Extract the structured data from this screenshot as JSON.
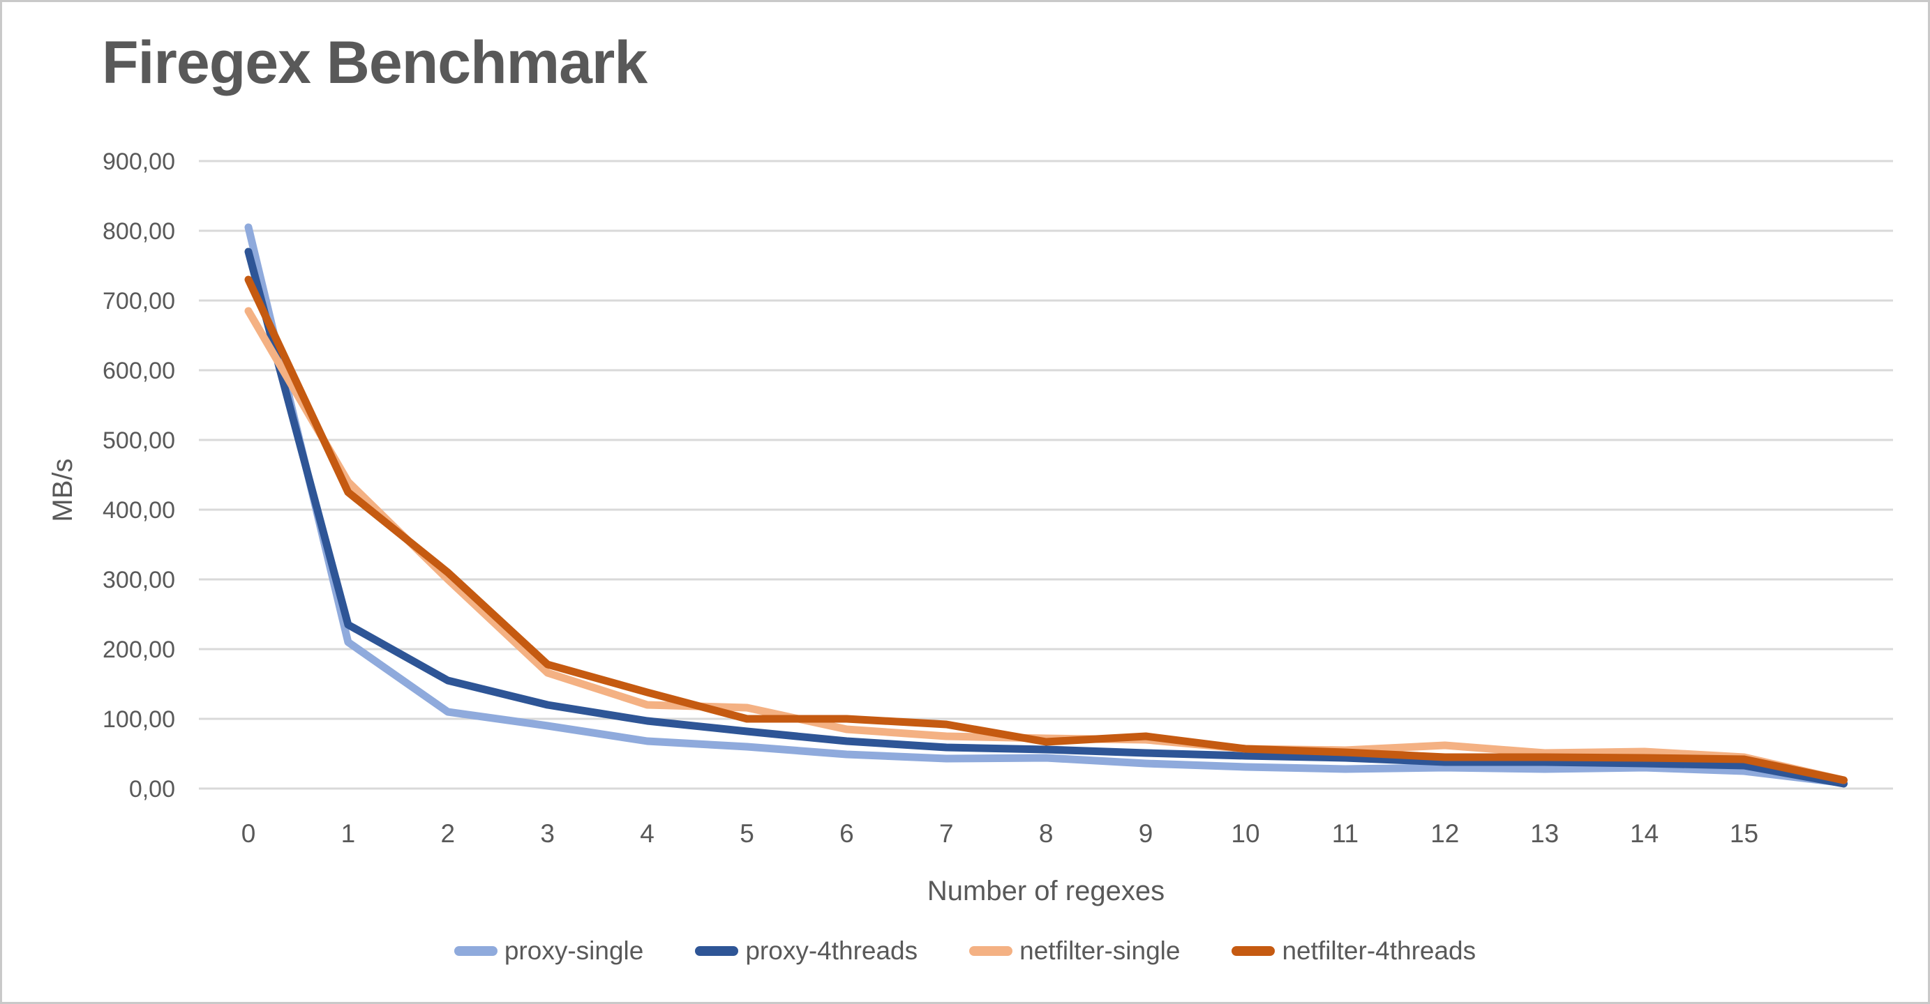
{
  "title": "Firegex Benchmark",
  "colors": {
    "title_text": "#595959",
    "axis_text": "#595959",
    "gridline": "#d9d9d9",
    "background": "#ffffff",
    "frame_border": "#c9c9c9"
  },
  "chart_data": {
    "type": "line",
    "title": "Firegex Benchmark",
    "xlabel": "Number of regexes",
    "ylabel": "MB/s",
    "grid": "horizontal",
    "legend_position": "bottom",
    "ylim": [
      0,
      900
    ],
    "y_ticks": [
      0,
      100,
      200,
      300,
      400,
      500,
      600,
      700,
      800,
      900
    ],
    "y_tick_labels": [
      "0,00",
      "100,00",
      "200,00",
      "300,00",
      "400,00",
      "500,00",
      "600,00",
      "700,00",
      "800,00",
      "900,00"
    ],
    "x": [
      0,
      1,
      2,
      3,
      4,
      5,
      6,
      7,
      8,
      9,
      10,
      11,
      12,
      13,
      14,
      15,
      16
    ],
    "x_tick_labels": [
      "0",
      "1",
      "2",
      "3",
      "4",
      "5",
      "6",
      "7",
      "8",
      "9",
      "10",
      "11",
      "12",
      "13",
      "14",
      "15",
      ""
    ],
    "series": [
      {
        "name": "proxy-single",
        "color": "#8FAADC",
        "values": [
          805,
          210,
          110,
          90,
          68,
          60,
          49,
          43,
          44,
          36,
          31,
          28,
          30,
          28,
          30,
          25,
          8
        ]
      },
      {
        "name": "proxy-4threads",
        "color": "#2E5596",
        "values": [
          770,
          235,
          155,
          120,
          97,
          82,
          68,
          59,
          56,
          51,
          47,
          44,
          38,
          38,
          36,
          33,
          7
        ]
      },
      {
        "name": "netfilter-single",
        "color": "#F4B183",
        "values": [
          685,
          440,
          300,
          166,
          120,
          116,
          85,
          75,
          72,
          70,
          57,
          55,
          62,
          51,
          53,
          45,
          12
        ]
      },
      {
        "name": "netfilter-4threads",
        "color": "#C55A11",
        "values": [
          730,
          425,
          310,
          178,
          138,
          100,
          100,
          92,
          67,
          75,
          57,
          52,
          45,
          45,
          44,
          42,
          12
        ]
      }
    ]
  }
}
